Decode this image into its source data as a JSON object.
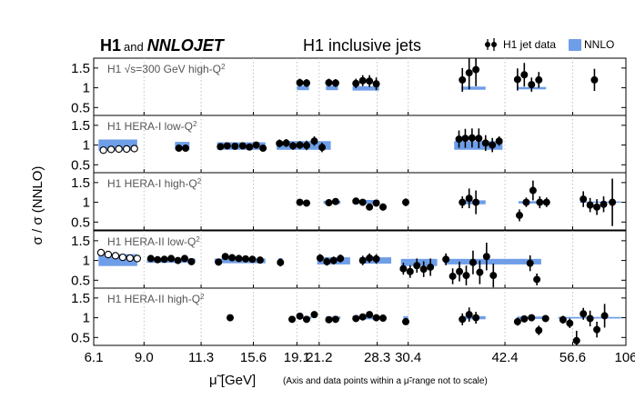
{
  "chart_data": {
    "type": "scatter",
    "title": "H1 inclusive jets",
    "collaboration": {
      "h1": "H1",
      "and": "and",
      "nnlojet": "NNLOJET"
    },
    "legend": {
      "data_label": "H1 jet data",
      "theory_label": "NNLO",
      "placement": "top-right"
    },
    "colors": {
      "band": "#6f9ee8",
      "point": "#000000",
      "grid": "#c0c0c0",
      "label": "#555555"
    },
    "ylabel": "σ / σ (NNLO)",
    "xlabel": "μ̃ [GeV]",
    "x_note": "(Axis and data points within a μ̃-range not to scale)",
    "xticks": [
      "6.1",
      "9.0",
      "11.3",
      "15.6",
      "19.1",
      "21.2",
      "28.3",
      "30.4",
      "42.4",
      "56.6",
      "106"
    ],
    "xtick_positions": [
      0,
      1.04,
      2.22,
      3.3,
      4.2,
      4.66,
      5.86,
      6.5,
      8.5,
      9.9,
      11
    ],
    "xlim": [
      0,
      11
    ],
    "panels": [
      {
        "label_parts": [
          "H1 ",
          "√s",
          "=300 GeV  high-Q",
          "2"
        ],
        "ylim": [
          0.3,
          1.75
        ],
        "yticks": [
          "1.5",
          "1",
          "0.5"
        ],
        "ytick_values": [
          1.5,
          1.0,
          0.5
        ],
        "bands": [
          {
            "x0": 4.2,
            "x1": 4.45,
            "lo": 0.94,
            "hi": 1.05
          },
          {
            "x0": 4.8,
            "x1": 5.05,
            "lo": 0.94,
            "hi": 1.05
          },
          {
            "x0": 5.35,
            "x1": 5.9,
            "lo": 0.93,
            "hi": 1.04
          },
          {
            "x0": 7.6,
            "x1": 8.1,
            "lo": 0.95,
            "hi": 1.03
          },
          {
            "x0": 8.75,
            "x1": 9.35,
            "lo": 0.96,
            "hi": 1.02
          }
        ],
        "points": [
          {
            "x": 4.26,
            "y": 1.13,
            "err": 0.1
          },
          {
            "x": 4.4,
            "y": 1.12,
            "err": 0.1
          },
          {
            "x": 4.86,
            "y": 1.13,
            "err": 0.1
          },
          {
            "x": 5.0,
            "y": 1.12,
            "err": 0.1
          },
          {
            "x": 5.42,
            "y": 1.11,
            "err": 0.12
          },
          {
            "x": 5.56,
            "y": 1.18,
            "err": 0.14
          },
          {
            "x": 5.7,
            "y": 1.17,
            "err": 0.15
          },
          {
            "x": 5.84,
            "y": 1.1,
            "err": 0.16
          },
          {
            "x": 7.62,
            "y": 1.2,
            "err": 0.3
          },
          {
            "x": 7.76,
            "y": 1.38,
            "err": 0.42
          },
          {
            "x": 7.9,
            "y": 1.46,
            "err": 0.42
          },
          {
            "x": 8.76,
            "y": 1.21,
            "err": 0.28
          },
          {
            "x": 8.9,
            "y": 1.33,
            "err": 0.3
          },
          {
            "x": 9.05,
            "y": 1.08,
            "err": 0.18
          },
          {
            "x": 9.2,
            "y": 1.2,
            "err": 0.2
          },
          {
            "x": 10.35,
            "y": 1.2,
            "err": 0.28
          }
        ]
      },
      {
        "label_parts": [
          "H1 HERA-I  low-Q",
          "2"
        ],
        "ylim": [
          0.3,
          1.75
        ],
        "yticks": [
          "1.5",
          "1",
          "0.5"
        ],
        "ytick_values": [
          1.5,
          1.0,
          0.5
        ],
        "bands": [
          {
            "x0": 0.1,
            "x1": 0.9,
            "lo": 0.86,
            "hi": 1.14
          },
          {
            "x0": 1.68,
            "x1": 1.98,
            "lo": 0.88,
            "hi": 1.08
          },
          {
            "x0": 2.55,
            "x1": 3.55,
            "lo": 0.88,
            "hi": 1.07
          },
          {
            "x0": 3.78,
            "x1": 4.9,
            "lo": 0.88,
            "hi": 1.1
          },
          {
            "x0": 7.45,
            "x1": 8.45,
            "lo": 0.88,
            "hi": 1.1
          }
        ],
        "points": [
          {
            "x": 0.2,
            "y": 0.87,
            "err": 0.03,
            "open": true
          },
          {
            "x": 0.36,
            "y": 0.89,
            "err": 0.03,
            "open": true
          },
          {
            "x": 0.52,
            "y": 0.9,
            "err": 0.03,
            "open": true
          },
          {
            "x": 0.68,
            "y": 0.9,
            "err": 0.03,
            "open": true
          },
          {
            "x": 0.84,
            "y": 0.91,
            "err": 0.03,
            "open": true
          },
          {
            "x": 1.76,
            "y": 0.92,
            "err": 0.06
          },
          {
            "x": 1.9,
            "y": 0.92,
            "err": 0.06
          },
          {
            "x": 2.62,
            "y": 0.96,
            "err": 0.07
          },
          {
            "x": 2.76,
            "y": 0.98,
            "err": 0.07
          },
          {
            "x": 2.92,
            "y": 0.97,
            "err": 0.07
          },
          {
            "x": 3.08,
            "y": 0.98,
            "err": 0.07
          },
          {
            "x": 3.22,
            "y": 0.95,
            "err": 0.07
          },
          {
            "x": 3.36,
            "y": 1.0,
            "err": 0.08
          },
          {
            "x": 3.5,
            "y": 0.92,
            "err": 0.08
          },
          {
            "x": 3.84,
            "y": 1.04,
            "err": 0.1
          },
          {
            "x": 3.98,
            "y": 1.05,
            "err": 0.1
          },
          {
            "x": 4.12,
            "y": 0.98,
            "err": 0.1
          },
          {
            "x": 4.26,
            "y": 1.0,
            "err": 0.1
          },
          {
            "x": 4.4,
            "y": 0.99,
            "err": 0.12
          },
          {
            "x": 4.56,
            "y": 1.1,
            "err": 0.12
          },
          {
            "x": 4.72,
            "y": 0.94,
            "err": 0.12
          },
          {
            "x": 7.55,
            "y": 1.15,
            "err": 0.22
          },
          {
            "x": 7.68,
            "y": 1.17,
            "err": 0.24
          },
          {
            "x": 7.82,
            "y": 1.18,
            "err": 0.24
          },
          {
            "x": 7.96,
            "y": 1.17,
            "err": 0.25
          },
          {
            "x": 8.1,
            "y": 1.05,
            "err": 0.2
          },
          {
            "x": 8.24,
            "y": 1.0,
            "err": 0.18
          },
          {
            "x": 8.38,
            "y": 1.1,
            "err": 0.12
          }
        ]
      },
      {
        "label_parts": [
          "H1 HERA-I  high-Q",
          "2"
        ],
        "ylim": [
          0.3,
          1.75
        ],
        "yticks": [
          "1.5",
          "1",
          "0.5"
        ],
        "ytick_values": [
          1.5,
          1.0,
          0.5
        ],
        "bands": [
          {
            "x0": 4.75,
            "x1": 5.1,
            "lo": 0.96,
            "hi": 1.04
          },
          {
            "x0": 5.35,
            "x1": 5.9,
            "lo": 0.96,
            "hi": 1.06
          },
          {
            "x0": 7.55,
            "x1": 8.1,
            "lo": 0.95,
            "hi": 1.05
          },
          {
            "x0": 8.78,
            "x1": 9.4,
            "lo": 0.97,
            "hi": 1.03
          },
          {
            "x0": 10.05,
            "x1": 10.9,
            "lo": 0.99,
            "hi": 1.02
          }
        ],
        "points": [
          {
            "x": 4.26,
            "y": 1.0,
            "err": 0.04
          },
          {
            "x": 4.4,
            "y": 0.98,
            "err": 0.04
          },
          {
            "x": 4.86,
            "y": 0.99,
            "err": 0.04
          },
          {
            "x": 5.0,
            "y": 1.02,
            "err": 0.04
          },
          {
            "x": 5.42,
            "y": 1.03,
            "err": 0.05
          },
          {
            "x": 5.56,
            "y": 1.0,
            "err": 0.06
          },
          {
            "x": 5.7,
            "y": 0.88,
            "err": 0.08
          },
          {
            "x": 5.84,
            "y": 0.98,
            "err": 0.08
          },
          {
            "x": 5.98,
            "y": 0.88,
            "err": 0.09
          },
          {
            "x": 6.45,
            "y": 1.0,
            "err": 0.1
          },
          {
            "x": 7.62,
            "y": 1.0,
            "err": 0.15
          },
          {
            "x": 7.76,
            "y": 1.1,
            "err": 0.25
          },
          {
            "x": 7.9,
            "y": 1.0,
            "err": 0.3
          },
          {
            "x": 8.8,
            "y": 0.67,
            "err": 0.15
          },
          {
            "x": 8.94,
            "y": 1.0,
            "err": 0.12
          },
          {
            "x": 9.08,
            "y": 1.3,
            "err": 0.25
          },
          {
            "x": 9.22,
            "y": 1.0,
            "err": 0.15
          },
          {
            "x": 9.36,
            "y": 1.0,
            "err": 0.12
          },
          {
            "x": 10.12,
            "y": 1.08,
            "err": 0.2
          },
          {
            "x": 10.26,
            "y": 0.93,
            "err": 0.18
          },
          {
            "x": 10.4,
            "y": 0.88,
            "err": 0.2
          },
          {
            "x": 10.54,
            "y": 0.95,
            "err": 0.2
          },
          {
            "x": 10.72,
            "y": 1.0,
            "err": 0.6
          }
        ]
      },
      {
        "label_parts": [
          "H1 HERA-II  low-Q",
          "2"
        ],
        "ylim": [
          0.3,
          1.75
        ],
        "yticks": [
          "1.5",
          "1",
          "0.5"
        ],
        "ytick_values": [
          1.5,
          1.0,
          0.5
        ],
        "bands": [
          {
            "x0": 0.1,
            "x1": 0.9,
            "lo": 0.86,
            "hi": 1.16
          },
          {
            "x0": 1.1,
            "x1": 2.1,
            "lo": 0.94,
            "hi": 1.05
          },
          {
            "x0": 2.5,
            "x1": 3.55,
            "lo": 0.93,
            "hi": 1.05
          },
          {
            "x0": 3.82,
            "x1": 3.9,
            "lo": 0.92,
            "hi": 1.06
          },
          {
            "x0": 4.62,
            "x1": 5.3,
            "lo": 0.9,
            "hi": 1.08
          },
          {
            "x0": 5.5,
            "x1": 6.15,
            "lo": 0.92,
            "hi": 1.08
          },
          {
            "x0": 6.35,
            "x1": 7.1,
            "lo": 0.86,
            "hi": 1.04
          },
          {
            "x0": 7.25,
            "x1": 9.25,
            "lo": 0.9,
            "hi": 1.04
          }
        ],
        "points": [
          {
            "x": 0.15,
            "y": 1.2,
            "err": 0.04,
            "open": true
          },
          {
            "x": 0.3,
            "y": 1.15,
            "err": 0.04,
            "open": true
          },
          {
            "x": 0.45,
            "y": 1.12,
            "err": 0.04,
            "open": true
          },
          {
            "x": 0.6,
            "y": 1.08,
            "err": 0.04,
            "open": true
          },
          {
            "x": 0.75,
            "y": 1.06,
            "err": 0.04,
            "open": true
          },
          {
            "x": 0.9,
            "y": 1.05,
            "err": 0.04,
            "open": true
          },
          {
            "x": 1.18,
            "y": 1.05,
            "err": 0.08
          },
          {
            "x": 1.32,
            "y": 1.02,
            "err": 0.08
          },
          {
            "x": 1.46,
            "y": 1.03,
            "err": 0.08
          },
          {
            "x": 1.6,
            "y": 1.05,
            "err": 0.08
          },
          {
            "x": 1.74,
            "y": 1.0,
            "err": 0.08
          },
          {
            "x": 1.88,
            "y": 1.05,
            "err": 0.08
          },
          {
            "x": 2.02,
            "y": 0.97,
            "err": 0.08
          },
          {
            "x": 2.58,
            "y": 0.96,
            "err": 0.07
          },
          {
            "x": 2.72,
            "y": 1.1,
            "err": 0.07
          },
          {
            "x": 2.86,
            "y": 1.07,
            "err": 0.07
          },
          {
            "x": 3.0,
            "y": 1.05,
            "err": 0.07
          },
          {
            "x": 3.14,
            "y": 1.04,
            "err": 0.07
          },
          {
            "x": 3.28,
            "y": 1.03,
            "err": 0.07
          },
          {
            "x": 3.44,
            "y": 1.01,
            "err": 0.07
          },
          {
            "x": 3.86,
            "y": 0.95,
            "err": 0.1
          },
          {
            "x": 4.68,
            "y": 1.06,
            "err": 0.1
          },
          {
            "x": 4.82,
            "y": 0.97,
            "err": 0.1
          },
          {
            "x": 4.96,
            "y": 1.0,
            "err": 0.1
          },
          {
            "x": 5.1,
            "y": 1.05,
            "err": 0.1
          },
          {
            "x": 5.56,
            "y": 1.0,
            "err": 0.12
          },
          {
            "x": 5.7,
            "y": 1.06,
            "err": 0.12
          },
          {
            "x": 5.84,
            "y": 1.04,
            "err": 0.12
          },
          {
            "x": 6.4,
            "y": 0.79,
            "err": 0.15
          },
          {
            "x": 6.54,
            "y": 0.72,
            "err": 0.16
          },
          {
            "x": 6.68,
            "y": 0.87,
            "err": 0.18
          },
          {
            "x": 6.82,
            "y": 0.78,
            "err": 0.2
          },
          {
            "x": 6.96,
            "y": 0.83,
            "err": 0.22
          },
          {
            "x": 7.28,
            "y": 1.03,
            "err": 0.15
          },
          {
            "x": 7.42,
            "y": 0.6,
            "err": 0.2
          },
          {
            "x": 7.56,
            "y": 0.72,
            "err": 0.25
          },
          {
            "x": 7.7,
            "y": 0.62,
            "err": 0.25
          },
          {
            "x": 7.84,
            "y": 0.95,
            "err": 0.3
          },
          {
            "x": 7.98,
            "y": 0.7,
            "err": 0.3
          },
          {
            "x": 8.12,
            "y": 1.1,
            "err": 0.35
          },
          {
            "x": 8.26,
            "y": 0.62,
            "err": 0.3
          },
          {
            "x": 9.02,
            "y": 0.93,
            "err": 0.2
          },
          {
            "x": 9.16,
            "y": 0.52,
            "err": 0.15
          }
        ]
      },
      {
        "label_parts": [
          "H1 HERA-II  high-Q",
          "2"
        ],
        "ylim": [
          0.3,
          1.75
        ],
        "yticks": [
          "1.5",
          "1",
          "0.5"
        ],
        "ytick_values": [
          1.5,
          1.0,
          0.5
        ],
        "bands": [
          {
            "x0": 4.2,
            "x1": 4.5,
            "lo": 0.97,
            "hi": 1.03
          },
          {
            "x0": 4.8,
            "x1": 5.1,
            "lo": 0.97,
            "hi": 1.03
          },
          {
            "x0": 5.35,
            "x1": 5.95,
            "lo": 0.96,
            "hi": 1.05
          },
          {
            "x0": 6.4,
            "x1": 6.5,
            "lo": 0.96,
            "hi": 1.04
          },
          {
            "x0": 7.6,
            "x1": 8.1,
            "lo": 0.96,
            "hi": 1.04
          },
          {
            "x0": 8.75,
            "x1": 9.4,
            "lo": 0.97,
            "hi": 1.03
          },
          {
            "x0": 9.6,
            "x1": 10.9,
            "lo": 0.98,
            "hi": 1.02
          }
        ],
        "points": [
          {
            "x": 2.82,
            "y": 1.0,
            "err": 0.04
          },
          {
            "x": 4.1,
            "y": 0.96,
            "err": 0.05
          },
          {
            "x": 4.26,
            "y": 1.04,
            "err": 0.05
          },
          {
            "x": 4.4,
            "y": 0.96,
            "err": 0.05
          },
          {
            "x": 4.56,
            "y": 1.08,
            "err": 0.05
          },
          {
            "x": 4.86,
            "y": 0.95,
            "err": 0.05
          },
          {
            "x": 5.0,
            "y": 0.96,
            "err": 0.05
          },
          {
            "x": 5.42,
            "y": 0.98,
            "err": 0.05
          },
          {
            "x": 5.56,
            "y": 1.02,
            "err": 0.06
          },
          {
            "x": 5.7,
            "y": 1.08,
            "err": 0.06
          },
          {
            "x": 5.84,
            "y": 1.0,
            "err": 0.06
          },
          {
            "x": 5.98,
            "y": 0.99,
            "err": 0.06
          },
          {
            "x": 6.45,
            "y": 0.9,
            "err": 0.08
          },
          {
            "x": 7.62,
            "y": 0.96,
            "err": 0.15
          },
          {
            "x": 7.76,
            "y": 1.08,
            "err": 0.18
          },
          {
            "x": 7.9,
            "y": 1.0,
            "err": 0.15
          },
          {
            "x": 8.76,
            "y": 0.9,
            "err": 0.1
          },
          {
            "x": 8.9,
            "y": 0.97,
            "err": 0.08
          },
          {
            "x": 9.05,
            "y": 1.0,
            "err": 0.08
          },
          {
            "x": 9.2,
            "y": 0.68,
            "err": 0.12
          },
          {
            "x": 9.34,
            "y": 0.98,
            "err": 0.08
          },
          {
            "x": 9.7,
            "y": 0.95,
            "err": 0.1
          },
          {
            "x": 9.84,
            "y": 0.86,
            "err": 0.12
          },
          {
            "x": 9.98,
            "y": 0.42,
            "err": 0.25
          },
          {
            "x": 10.12,
            "y": 1.1,
            "err": 0.15
          },
          {
            "x": 10.26,
            "y": 0.98,
            "err": 0.2
          },
          {
            "x": 10.4,
            "y": 0.7,
            "err": 0.2
          },
          {
            "x": 10.56,
            "y": 1.05,
            "err": 0.3
          }
        ]
      }
    ]
  }
}
